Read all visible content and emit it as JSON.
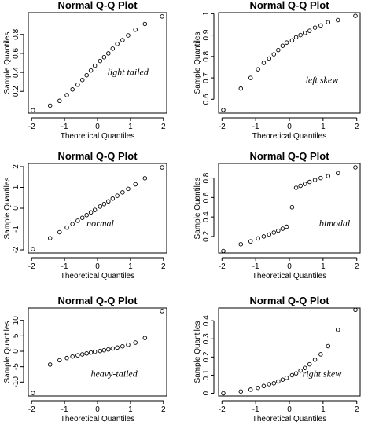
{
  "chart_data": [
    {
      "type": "scatter",
      "title": "Normal Q-Q Plot",
      "xlabel": "Theoretical Quantiles",
      "ylabel": "Sample Quantiles",
      "annotation": "light tailed",
      "xlim": [
        -2.1,
        2.1
      ],
      "ylim": [
        -0.03,
        1.03
      ],
      "xticks": [
        -2,
        -1,
        0,
        1,
        2
      ],
      "yticks": [
        0.2,
        0.4,
        0.6,
        0.8
      ],
      "x": [
        -1.96,
        -1.44,
        -1.15,
        -0.93,
        -0.76,
        -0.6,
        -0.46,
        -0.33,
        -0.2,
        -0.08,
        0.08,
        0.2,
        0.33,
        0.46,
        0.6,
        0.76,
        0.93,
        1.15,
        1.44,
        1.96
      ],
      "y": [
        0.0,
        0.05,
        0.1,
        0.16,
        0.22,
        0.27,
        0.32,
        0.37,
        0.42,
        0.47,
        0.52,
        0.56,
        0.6,
        0.65,
        0.7,
        0.74,
        0.79,
        0.85,
        0.91,
        0.99
      ]
    },
    {
      "type": "scatter",
      "title": "Normal Q-Q Plot",
      "xlabel": "Theoretical Quantiles",
      "ylabel": "Sample Quantiles",
      "annotation": "left skew",
      "xlim": [
        -2.1,
        2.1
      ],
      "ylim": [
        0.535,
        1.005
      ],
      "xticks": [
        -2,
        -1,
        0,
        1,
        2
      ],
      "yticks": [
        0.6,
        0.7,
        0.8,
        0.9,
        1.0
      ],
      "x": [
        -1.96,
        -1.44,
        -1.15,
        -0.93,
        -0.76,
        -0.6,
        -0.46,
        -0.33,
        -0.2,
        -0.08,
        0.08,
        0.2,
        0.33,
        0.46,
        0.6,
        0.76,
        0.93,
        1.15,
        1.44,
        1.96
      ],
      "y": [
        0.55,
        0.65,
        0.7,
        0.74,
        0.77,
        0.79,
        0.81,
        0.83,
        0.85,
        0.865,
        0.875,
        0.89,
        0.9,
        0.91,
        0.92,
        0.935,
        0.945,
        0.96,
        0.97,
        0.99
      ]
    },
    {
      "type": "scatter",
      "title": "Normal Q-Q Plot",
      "xlabel": "Theoretical Quantiles",
      "ylabel": "Sample Quantiles",
      "annotation": "normal",
      "xlim": [
        -2.1,
        2.1
      ],
      "ylim": [
        -2.15,
        2.15
      ],
      "xticks": [
        -2,
        -1,
        0,
        1,
        2
      ],
      "yticks": [
        -2,
        -1,
        0,
        1,
        2
      ],
      "x": [
        -1.96,
        -1.44,
        -1.15,
        -0.93,
        -0.76,
        -0.6,
        -0.46,
        -0.33,
        -0.2,
        -0.08,
        0.08,
        0.2,
        0.33,
        0.46,
        0.6,
        0.76,
        0.93,
        1.15,
        1.44,
        1.96
      ],
      "y": [
        -1.96,
        -1.44,
        -1.15,
        -0.93,
        -0.76,
        -0.6,
        -0.46,
        -0.33,
        -0.2,
        -0.08,
        0.08,
        0.2,
        0.33,
        0.46,
        0.6,
        0.76,
        0.93,
        1.15,
        1.44,
        1.96
      ]
    },
    {
      "type": "scatter",
      "title": "Normal Q-Q Plot",
      "xlabel": "Theoretical Quantiles",
      "ylabel": "Sample Quantiles",
      "annotation": "bimodal",
      "xlim": [
        -2.1,
        2.1
      ],
      "ylim": [
        0.03,
        0.95
      ],
      "xticks": [
        -2,
        -1,
        0,
        1,
        2
      ],
      "yticks": [
        0.2,
        0.4,
        0.6,
        0.8
      ],
      "x": [
        -1.96,
        -1.44,
        -1.15,
        -0.93,
        -0.76,
        -0.6,
        -0.46,
        -0.33,
        -0.2,
        -0.08,
        0.08,
        0.2,
        0.33,
        0.46,
        0.6,
        0.76,
        0.93,
        1.15,
        1.44,
        1.96
      ],
      "y": [
        0.05,
        0.12,
        0.15,
        0.18,
        0.2,
        0.22,
        0.24,
        0.26,
        0.28,
        0.3,
        0.5,
        0.7,
        0.72,
        0.74,
        0.76,
        0.78,
        0.8,
        0.82,
        0.85,
        0.91
      ]
    },
    {
      "type": "scatter",
      "title": "Normal Q-Q Plot",
      "xlabel": "Theoretical Quantiles",
      "ylabel": "Sample Quantiles",
      "annotation": "heavy-tailed",
      "xlim": [
        -2.1,
        2.1
      ],
      "ylim": [
        -14.5,
        14
      ],
      "xticks": [
        -2,
        -1,
        0,
        1,
        2
      ],
      "yticks": [
        -10,
        -5,
        0,
        5,
        10
      ],
      "x": [
        -1.96,
        -1.44,
        -1.15,
        -0.93,
        -0.76,
        -0.6,
        -0.46,
        -0.33,
        -0.2,
        -0.08,
        0.08,
        0.2,
        0.33,
        0.46,
        0.6,
        0.76,
        0.93,
        1.15,
        1.44,
        1.96
      ],
      "y": [
        -13.5,
        -4.3,
        -2.9,
        -2.2,
        -1.7,
        -1.3,
        -1.0,
        -0.7,
        -0.4,
        -0.15,
        0.1,
        0.35,
        0.6,
        0.9,
        1.2,
        1.6,
        2.1,
        2.8,
        4.3,
        13.0
      ]
    },
    {
      "type": "scatter",
      "title": "Normal Q-Q Plot",
      "xlabel": "Theoretical Quantiles",
      "ylabel": "Sample Quantiles",
      "annotation": "right skew",
      "xlim": [
        -2.1,
        2.1
      ],
      "ylim": [
        -0.015,
        0.47
      ],
      "xticks": [
        -2,
        -1,
        0,
        1,
        2
      ],
      "yticks": [
        0.0,
        0.1,
        0.2,
        0.3,
        0.4
      ],
      "x": [
        -1.96,
        -1.44,
        -1.15,
        -0.93,
        -0.76,
        -0.6,
        -0.46,
        -0.33,
        -0.2,
        -0.08,
        0.08,
        0.2,
        0.33,
        0.46,
        0.6,
        0.76,
        0.93,
        1.15,
        1.44,
        1.96
      ],
      "y": [
        0.0,
        0.01,
        0.02,
        0.03,
        0.04,
        0.05,
        0.055,
        0.065,
        0.075,
        0.085,
        0.1,
        0.11,
        0.125,
        0.14,
        0.16,
        0.185,
        0.215,
        0.26,
        0.35,
        0.46
      ]
    }
  ]
}
